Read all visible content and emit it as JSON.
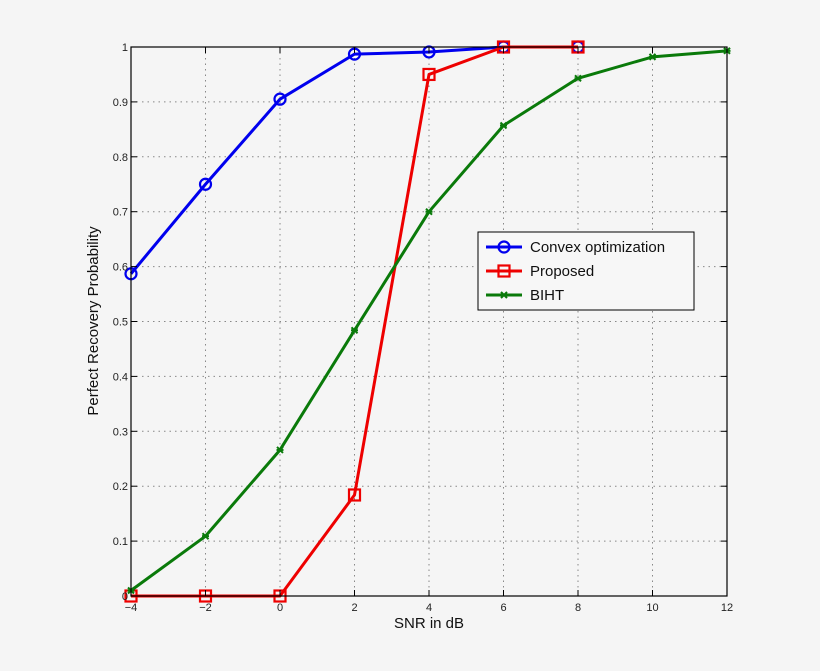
{
  "chart_data": {
    "type": "line",
    "title": "",
    "xlabel": "SNR in dB",
    "ylabel": "Perfect Recovery Probability",
    "xlim": [
      -4,
      12
    ],
    "ylim": [
      0,
      1
    ],
    "grid": true,
    "legend_position": "center-right",
    "x_ticks": [
      -4,
      -2,
      0,
      2,
      4,
      6,
      8,
      10,
      12
    ],
    "x_tick_labels": [
      "−4",
      "−2",
      "0",
      "2",
      "4",
      "6",
      "8",
      "10",
      "12"
    ],
    "y_ticks": [
      0,
      0.1,
      0.2,
      0.3,
      0.4,
      0.5,
      0.6,
      0.7,
      0.8,
      0.9,
      1
    ],
    "y_tick_labels": [
      "0",
      "0.1",
      "0.2",
      "0.3",
      "0.4",
      "0.5",
      "0.6",
      "0.7",
      "0.8",
      "0.9",
      "1"
    ],
    "series": [
      {
        "name": "Convex optimization",
        "color": "#0000ee",
        "marker": "circle",
        "x": [
          -4,
          -2,
          0,
          2,
          4,
          6,
          8
        ],
        "values": [
          0.587,
          0.75,
          0.905,
          0.987,
          0.991,
          1.0,
          1.0
        ]
      },
      {
        "name": "Proposed",
        "color": "#ee0000",
        "marker": "square",
        "x": [
          -4,
          -2,
          0,
          2,
          4,
          6,
          8
        ],
        "values": [
          0.0,
          0.0,
          0.0,
          0.184,
          0.95,
          1.0,
          1.0
        ]
      },
      {
        "name": "BIHT",
        "color": "#0a7a0a",
        "marker": "star",
        "x": [
          -4,
          -2,
          0,
          2,
          4,
          6,
          8,
          10,
          12
        ],
        "values": [
          0.01,
          0.109,
          0.266,
          0.484,
          0.7,
          0.857,
          0.943,
          0.982,
          0.993
        ]
      }
    ]
  }
}
